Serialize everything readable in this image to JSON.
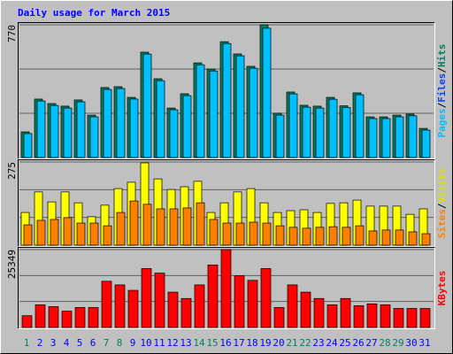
{
  "chart_data": [
    {
      "type": "bar",
      "title": "Daily usage for March 2015",
      "ylim": [
        0,
        770
      ],
      "yticks": [
        770
      ],
      "side_label": [
        {
          "text": "Pages",
          "color": "#00c0ff"
        },
        {
          "text": "/",
          "color": "#000000"
        },
        {
          "text": "Files",
          "color": "#0040ff"
        },
        {
          "text": "/",
          "color": "#000000"
        },
        {
          "text": "Hits",
          "color": "#008060"
        }
      ],
      "series": [
        {
          "color": "#008060",
          "values": [
            149,
            339,
            313,
            298,
            334,
            246,
            406,
            411,
            349,
            611,
            457,
            287,
            370,
            549,
            513,
            672,
            601,
            529,
            770,
            257,
            380,
            303,
            298,
            349,
            300,
            375,
            236,
            236,
            246,
            252,
            169
          ]
        },
        {
          "color": "#00c0ff",
          "values": [
            139,
            328,
            302,
            287,
            323,
            236,
            395,
            400,
            339,
            600,
            446,
            277,
            359,
            538,
            502,
            661,
            590,
            518,
            750,
            246,
            369,
            292,
            287,
            338,
            290,
            364,
            226,
            226,
            236,
            242,
            159
          ]
        }
      ]
    },
    {
      "type": "bar",
      "ylim": [
        0,
        275
      ],
      "yticks": [
        275
      ],
      "side_label": [
        {
          "text": "Sites",
          "color": "#ff8000"
        },
        {
          "text": "/",
          "color": "#000000"
        },
        {
          "text": "Visits",
          "color": "#e0e000"
        }
      ],
      "series": [
        {
          "color": "#ffff00",
          "values": [
            108,
            176,
            143,
            176,
            140,
            94,
            132,
            187,
            208,
            272,
            219,
            184,
            193,
            211,
            108,
            140,
            176,
            187,
            140,
            108,
            114,
            117,
            108,
            138,
            140,
            149,
            129,
            129,
            129,
            102,
            120
          ]
        },
        {
          "color": "#ff8000",
          "values": [
            67,
            82,
            85,
            91,
            73,
            73,
            64,
            108,
            146,
            135,
            120,
            120,
            123,
            140,
            85,
            73,
            73,
            76,
            73,
            64,
            59,
            56,
            59,
            61,
            59,
            64,
            47,
            50,
            50,
            44,
            38
          ]
        }
      ]
    },
    {
      "type": "bar",
      "ylim": [
        0,
        25349
      ],
      "yticks": [
        25349
      ],
      "side_label": [
        {
          "text": "KBytes",
          "color": "#ff0000"
        }
      ],
      "categories": [
        "1",
        "2",
        "3",
        "4",
        "5",
        "6",
        "7",
        "8",
        "9",
        "10",
        "11",
        "12",
        "13",
        "14",
        "15",
        "16",
        "17",
        "18",
        "19",
        "20",
        "21",
        "22",
        "23",
        "24",
        "25",
        "26",
        "27",
        "28",
        "29",
        "30",
        "31"
      ],
      "category_colors": [
        "#008060",
        "#0000ff",
        "#0000ff",
        "#0000ff",
        "#0000ff",
        "#0000ff",
        "#008060",
        "#008060",
        "#0000ff",
        "#0000ff",
        "#0000ff",
        "#0000ff",
        "#0000ff",
        "#008060",
        "#008060",
        "#0000ff",
        "#0000ff",
        "#0000ff",
        "#0000ff",
        "#0000ff",
        "#008060",
        "#008060",
        "#0000ff",
        "#0000ff",
        "#0000ff",
        "#0000ff",
        "#0000ff",
        "#008060",
        "#008060",
        "#0000ff",
        "#0000ff"
      ],
      "series": [
        {
          "color": "#ff0000",
          "values": [
            3832,
            7370,
            6780,
            5306,
            6486,
            6486,
            15035,
            13856,
            12087,
            19162,
            17688,
            11497,
            9434,
            13856,
            20341,
            25349,
            16804,
            15330,
            19162,
            6486,
            13856,
            11497,
            9434,
            7370,
            9434,
            7075,
            7665,
            7370,
            6191,
            6191,
            6191
          ]
        }
      ]
    }
  ]
}
